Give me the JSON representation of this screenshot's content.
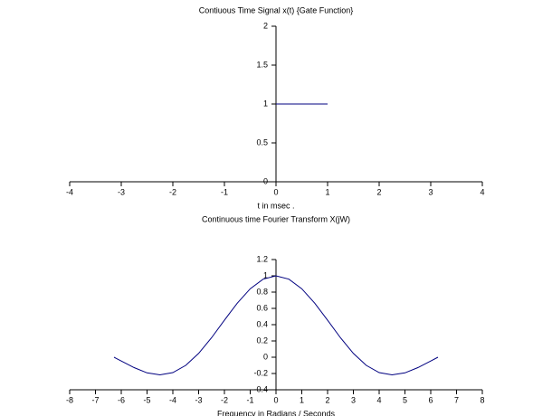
{
  "chart_data": [
    {
      "type": "line",
      "title": "Contiuous Time Signal x(t)  {Gate Function}",
      "xlabel": "t in msec .",
      "x": [
        0,
        1
      ],
      "values": [
        1,
        1
      ],
      "color": "#000080",
      "xlim": [
        -4,
        4
      ],
      "xticks": [
        -4,
        -3,
        -2,
        -1,
        0,
        1,
        2,
        3,
        4
      ],
      "ylim": [
        0,
        2
      ],
      "yticks": [
        0,
        0.5,
        1,
        1.5,
        2
      ]
    },
    {
      "type": "line",
      "title": "Continuous time Fourier Transform X(jW)",
      "xlabel": "Frequency in Radians / Seconds",
      "x": [
        -6.28,
        -6,
        -5.5,
        -5,
        -4.5,
        -4,
        -3.5,
        -3,
        -2.5,
        -2,
        -1.5,
        -1,
        -0.5,
        0,
        0.5,
        1,
        1.5,
        2,
        2.5,
        3,
        3.5,
        4,
        4.5,
        5,
        5.5,
        6,
        6.28
      ],
      "values": [
        0,
        -0.047,
        -0.128,
        -0.192,
        -0.217,
        -0.189,
        -0.1,
        0.047,
        0.239,
        0.455,
        0.665,
        0.841,
        0.959,
        1,
        0.959,
        0.841,
        0.665,
        0.455,
        0.239,
        0.047,
        -0.1,
        -0.189,
        -0.217,
        -0.192,
        -0.128,
        -0.047,
        0
      ],
      "color": "#000080",
      "xlim": [
        -8,
        8
      ],
      "xticks": [
        -8,
        -7,
        -6,
        -5,
        -4,
        -3,
        -2,
        -1,
        0,
        1,
        2,
        3,
        4,
        5,
        6,
        7,
        8
      ],
      "ylim": [
        -0.4,
        1.2
      ],
      "yticks": [
        -0.4,
        -0.2,
        0,
        0.2,
        0.4,
        0.6,
        0.8,
        1,
        1.2
      ]
    }
  ]
}
